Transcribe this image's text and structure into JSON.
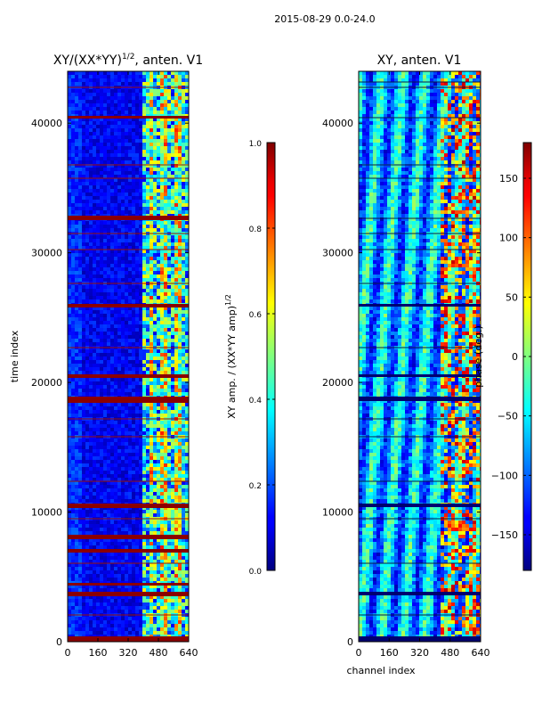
{
  "suptitle": "2015-08-29 0.0-24.0",
  "chart_data": [
    {
      "type": "heatmap",
      "title_main": "XY/(XX*YY)",
      "title_sup": "1/2",
      "title_rest": ", anten. V1",
      "xlabel": "",
      "ylabel": "time index",
      "xlim": [
        0,
        640
      ],
      "ylim": [
        0,
        44000
      ],
      "xticks": [
        "0",
        "160",
        "320",
        "480",
        "640"
      ],
      "yticks": [
        "0",
        "10000",
        "20000",
        "30000",
        "40000"
      ],
      "colorbar": {
        "label_main": "XY amp. / (XX*YY amp)",
        "label_sup": "1/2",
        "range": [
          0.0,
          1.0
        ],
        "ticks": [
          "0.0",
          "0.2",
          "0.4",
          "0.6",
          "0.8",
          "1.0"
        ],
        "colormap": "jet"
      }
    },
    {
      "type": "heatmap",
      "title": "XY, anten. V1",
      "xlabel": "channel index",
      "ylabel": "",
      "xlim": [
        0,
        640
      ],
      "ylim": [
        0,
        44000
      ],
      "xticks": [
        "0",
        "160",
        "320",
        "480",
        "640"
      ],
      "yticks": [
        "0",
        "10000",
        "20000",
        "30000",
        "40000"
      ],
      "colorbar": {
        "label": "phase (deg.)",
        "range": [
          -180,
          180
        ],
        "ticks": [
          "−150",
          "−100",
          "−50",
          "0",
          "50",
          "100",
          "150"
        ],
        "colormap": "jet"
      }
    }
  ]
}
